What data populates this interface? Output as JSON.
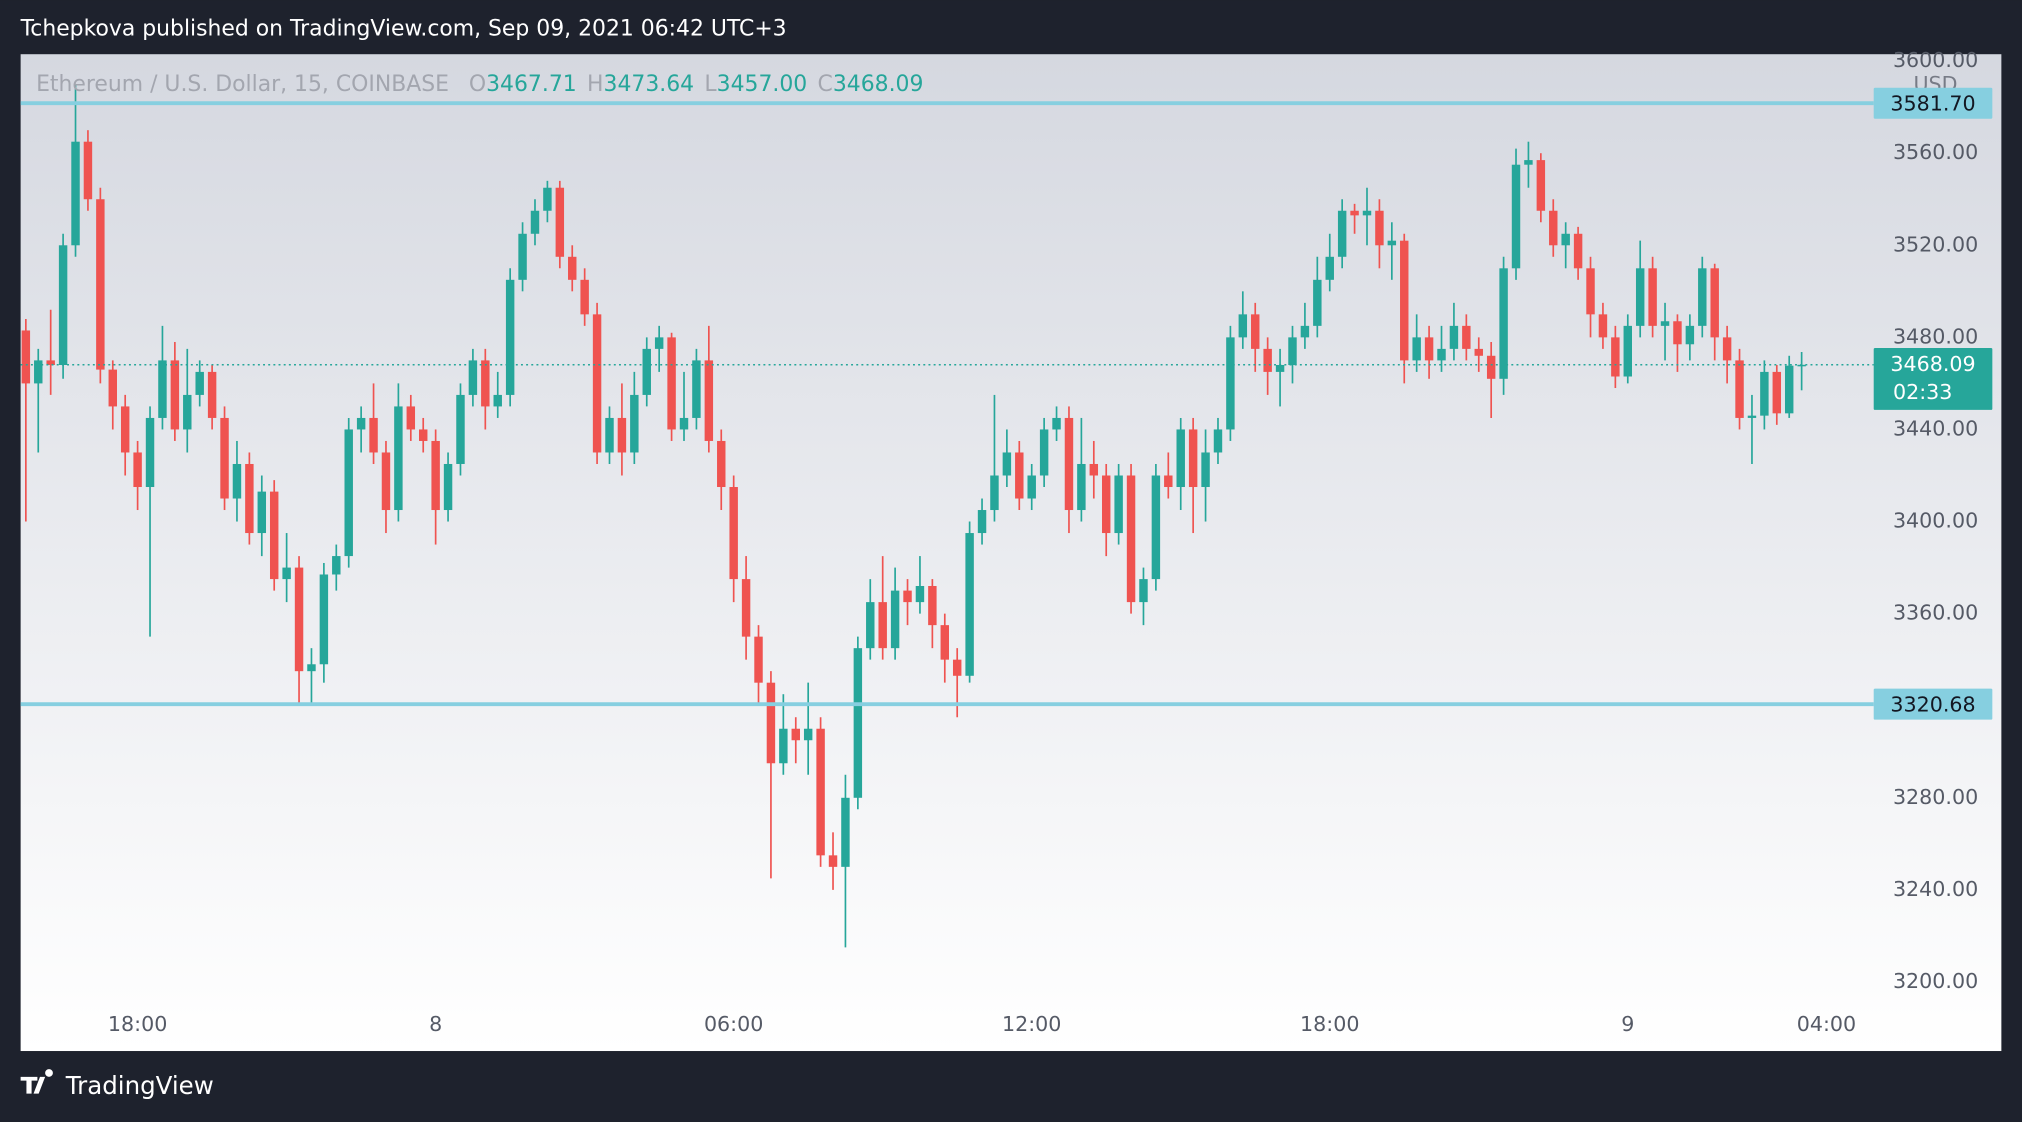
{
  "header": {
    "text": "Tchepkova published on TradingView.com, Sep 09, 2021 06:42 UTC+3"
  },
  "footer": {
    "brand": "TradingView"
  },
  "chart_data": {
    "type": "candlestick",
    "title": "Ethereum / U.S. Dollar, 15, COINBASE",
    "ohlc_legend": [
      {
        "label": "O",
        "value": 3467.71
      },
      {
        "label": "H",
        "value": 3473.64
      },
      {
        "label": "L",
        "value": 3457,
        "value_label": "3457.00"
      },
      {
        "label": "C",
        "value": 3468.09
      }
    ],
    "up_color": "#26a69a",
    "down_color": "#ef5350",
    "currency": "USD",
    "open": [
      3483,
      3460,
      3470,
      3468,
      3520,
      3565,
      3540,
      3466,
      3450,
      3430,
      3415,
      3445,
      3470,
      3440,
      3455,
      3465,
      3445,
      3410,
      3425,
      3395,
      3413,
      3375,
      3380,
      3335,
      3338,
      3377,
      3385,
      3440,
      3445,
      3430,
      3405,
      3450,
      3440,
      3435,
      3405,
      3425,
      3455,
      3470,
      3450,
      3455,
      3505,
      3525,
      3535,
      3545,
      3515,
      3505,
      3490,
      3430,
      3445,
      3430,
      3455,
      3475,
      3480,
      3440,
      3445,
      3470,
      3435,
      3415,
      3375,
      3350,
      3330,
      3295,
      3310,
      3305,
      3310,
      3255,
      3250,
      3280,
      3345,
      3365,
      3345,
      3370,
      3365,
      3372,
      3355,
      3340,
      3333,
      3395,
      3405,
      3420,
      3430,
      3410,
      3420,
      3440,
      3445,
      3405,
      3425,
      3420,
      3395,
      3420,
      3365,
      3375,
      3420,
      3415,
      3440,
      3415,
      3430,
      3440,
      3480,
      3490,
      3475,
      3465,
      3468,
      3480,
      3485,
      3505,
      3515,
      3535,
      3533,
      3535,
      3520,
      3522,
      3470,
      3480,
      3470,
      3475,
      3485,
      3475,
      3472,
      3462,
      3510,
      3555,
      3557,
      3535,
      3520,
      3525,
      3510,
      3490,
      3480,
      3463,
      3485,
      3510,
      3485,
      3487,
      3477,
      3485,
      3510,
      3480,
      3470,
      3445,
      3446,
      3465,
      3447,
      3467.71
    ],
    "high": [
      3488,
      3475,
      3492,
      3525,
      3590,
      3570,
      3545,
      3470,
      3455,
      3435,
      3450,
      3485,
      3478,
      3475,
      3470,
      3468,
      3450,
      3435,
      3430,
      3420,
      3418,
      3395,
      3385,
      3345,
      3382,
      3390,
      3445,
      3450,
      3460,
      3435,
      3460,
      3455,
      3445,
      3440,
      3430,
      3460,
      3475,
      3475,
      3465,
      3510,
      3530,
      3540,
      3548,
      3548,
      3520,
      3510,
      3495,
      3450,
      3460,
      3465,
      3480,
      3485,
      3482,
      3465,
      3475,
      3485,
      3440,
      3420,
      3385,
      3355,
      3335,
      3325,
      3315,
      3330,
      3315,
      3265,
      3290,
      3350,
      3375,
      3385,
      3380,
      3375,
      3385,
      3375,
      3360,
      3345,
      3400,
      3410,
      3455,
      3440,
      3435,
      3425,
      3445,
      3450,
      3450,
      3445,
      3435,
      3425,
      3425,
      3425,
      3380,
      3425,
      3430,
      3445,
      3445,
      3440,
      3445,
      3485,
      3500,
      3495,
      3480,
      3475,
      3485,
      3495,
      3515,
      3525,
      3540,
      3538,
      3545,
      3540,
      3530,
      3525,
      3490,
      3485,
      3485,
      3495,
      3490,
      3480,
      3478,
      3515,
      3562,
      3565,
      3560,
      3540,
      3530,
      3528,
      3515,
      3495,
      3485,
      3490,
      3522,
      3515,
      3495,
      3490,
      3490,
      3515,
      3512,
      3485,
      3475,
      3455,
      3470,
      3468,
      3472,
      3473.64
    ],
    "low": [
      3400,
      3430,
      3455,
      3462,
      3515,
      3535,
      3460,
      3440,
      3420,
      3405,
      3350,
      3440,
      3435,
      3430,
      3450,
      3440,
      3405,
      3400,
      3390,
      3385,
      3370,
      3365,
      3320,
      3320,
      3330,
      3370,
      3380,
      3430,
      3425,
      3395,
      3400,
      3435,
      3430,
      3390,
      3400,
      3420,
      3450,
      3440,
      3445,
      3450,
      3500,
      3520,
      3530,
      3510,
      3500,
      3485,
      3425,
      3425,
      3420,
      3425,
      3450,
      3465,
      3435,
      3435,
      3440,
      3430,
      3405,
      3365,
      3340,
      3320,
      3245,
      3290,
      3295,
      3290,
      3250,
      3240,
      3215,
      3275,
      3340,
      3340,
      3340,
      3355,
      3360,
      3345,
      3330,
      3315,
      3330,
      3390,
      3400,
      3415,
      3405,
      3405,
      3415,
      3435,
      3395,
      3400,
      3410,
      3385,
      3390,
      3360,
      3355,
      3370,
      3410,
      3405,
      3395,
      3400,
      3425,
      3435,
      3475,
      3465,
      3455,
      3450,
      3460,
      3475,
      3480,
      3500,
      3510,
      3525,
      3520,
      3510,
      3505,
      3460,
      3465,
      3462,
      3465,
      3470,
      3470,
      3465,
      3445,
      3455,
      3505,
      3545,
      3530,
      3515,
      3510,
      3505,
      3480,
      3475,
      3458,
      3460,
      3480,
      3480,
      3470,
      3465,
      3470,
      3480,
      3470,
      3460,
      3440,
      3425,
      3440,
      3442,
      3445,
      3457
    ],
    "close": [
      3460,
      3470,
      3468,
      3520,
      3565,
      3540,
      3466,
      3450,
      3430,
      3415,
      3445,
      3470,
      3440,
      3455,
      3465,
      3445,
      3410,
      3425,
      3395,
      3413,
      3375,
      3380,
      3335,
      3338,
      3377,
      3385,
      3440,
      3445,
      3430,
      3405,
      3450,
      3440,
      3435,
      3405,
      3425,
      3455,
      3470,
      3450,
      3455,
      3505,
      3525,
      3535,
      3545,
      3515,
      3505,
      3490,
      3430,
      3445,
      3430,
      3455,
      3475,
      3480,
      3440,
      3445,
      3470,
      3435,
      3415,
      3375,
      3350,
      3330,
      3295,
      3310,
      3305,
      3310,
      3255,
      3250,
      3280,
      3345,
      3365,
      3345,
      3370,
      3365,
      3372,
      3355,
      3340,
      3333,
      3395,
      3405,
      3420,
      3430,
      3410,
      3420,
      3440,
      3445,
      3405,
      3425,
      3420,
      3395,
      3420,
      3365,
      3375,
      3420,
      3415,
      3440,
      3415,
      3430,
      3440,
      3480,
      3490,
      3475,
      3465,
      3468,
      3480,
      3485,
      3505,
      3515,
      3535,
      3533,
      3535,
      3520,
      3522,
      3470,
      3480,
      3470,
      3475,
      3485,
      3475,
      3472,
      3462,
      3510,
      3555,
      3557,
      3535,
      3520,
      3525,
      3510,
      3490,
      3480,
      3463,
      3485,
      3510,
      3485,
      3487,
      3477,
      3485,
      3510,
      3480,
      3470,
      3445,
      3446,
      3465,
      3447,
      3467.71,
      3468.09
    ],
    "xlim": [
      -0.42,
      148.7
    ],
    "xticks": [
      {
        "value": 9,
        "label": "18:00"
      },
      {
        "value": 33,
        "label": "8"
      },
      {
        "value": 57,
        "label": "06:00"
      },
      {
        "value": 81,
        "label": "12:00"
      },
      {
        "value": 105,
        "label": "18:00"
      },
      {
        "value": 129,
        "label": "9"
      },
      {
        "value": 145,
        "label": "04:00"
      }
    ],
    "ylim": [
      3170,
      3603
    ],
    "yticks": [
      {
        "value": 3200,
        "label": "3200.00"
      },
      {
        "value": 3240,
        "label": "3240.00"
      },
      {
        "value": 3280,
        "label": "3280.00"
      },
      {
        "value": 3320,
        "label": "3320.00"
      },
      {
        "value": 3360,
        "label": "3360.00"
      },
      {
        "value": 3400,
        "label": "3400.00"
      },
      {
        "value": 3440,
        "label": "3440.00"
      },
      {
        "value": 3480,
        "label": "3480.00"
      },
      {
        "value": 3520,
        "label": "3520.00"
      },
      {
        "value": 3560,
        "label": "3560.00"
      },
      {
        "value": 3600,
        "label": "3600.00"
      }
    ],
    "levels": [
      {
        "value": 3581.7,
        "label": "3581.70"
      },
      {
        "value": 3320.68,
        "label": "3320.68"
      }
    ],
    "level_color": "#86cfe0",
    "last_price": {
      "value": 3468.09,
      "countdown": "02:33"
    }
  }
}
